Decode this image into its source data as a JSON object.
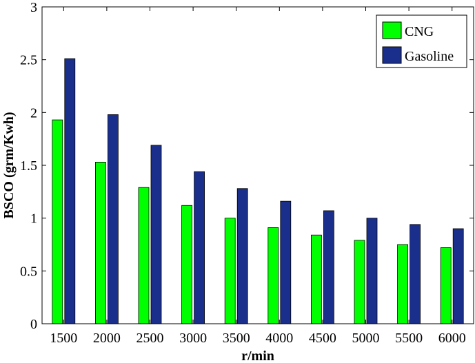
{
  "chart_data": {
    "type": "bar",
    "title": "",
    "xlabel": "r/min",
    "ylabel": "BSCO (grm/Kwh)",
    "categories": [
      "1500",
      "2000",
      "2500",
      "3000",
      "3500",
      "4000",
      "4500",
      "5000",
      "5500",
      "6000"
    ],
    "series": [
      {
        "name": "CNG",
        "color": "#00ff00",
        "values": [
          1.93,
          1.53,
          1.29,
          1.12,
          1.0,
          0.91,
          0.84,
          0.79,
          0.75,
          0.72
        ]
      },
      {
        "name": "Gasoline",
        "color": "#1a2f8c",
        "values": [
          2.51,
          1.98,
          1.69,
          1.44,
          1.28,
          1.16,
          1.07,
          1.0,
          0.94,
          0.9
        ]
      }
    ],
    "ylim": [
      0,
      3
    ],
    "yticks": [
      "0",
      "0.5",
      "1",
      "1.5",
      "2",
      "2.5",
      "3"
    ],
    "legend_position": "top-right",
    "grid": false
  }
}
